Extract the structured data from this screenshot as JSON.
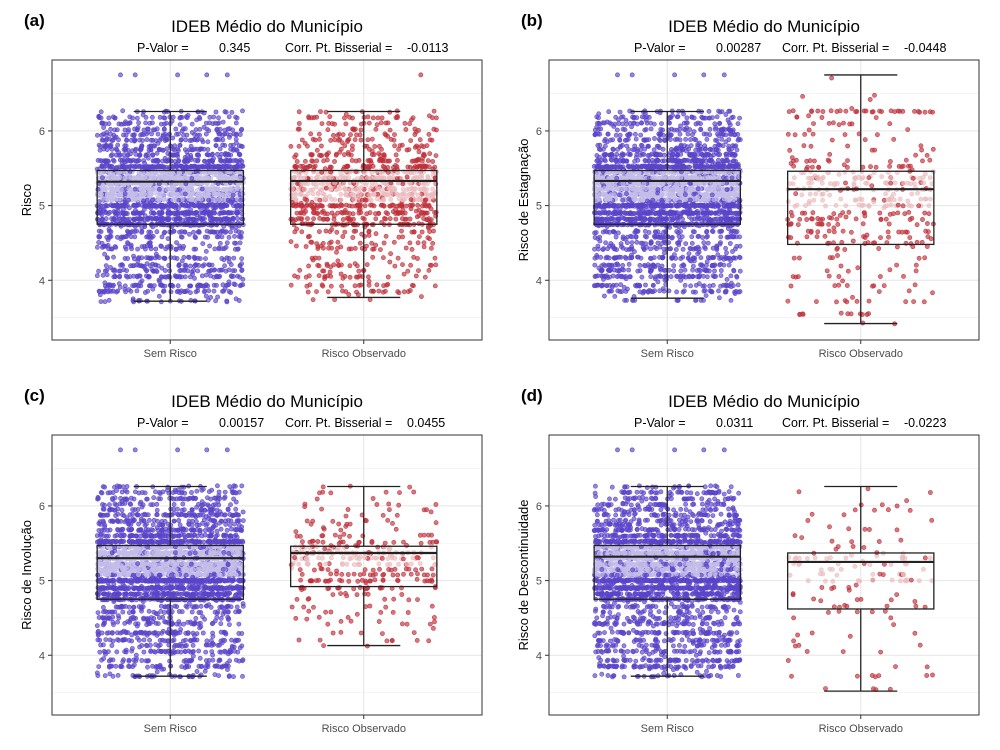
{
  "colors": {
    "group1_dot": "#5a45c9",
    "group1_dot_center": "#c4bde8",
    "group2_dot": "#c0303a",
    "group2_dot_center": "#ebbcbf",
    "grid_major": "#e5e5e5",
    "grid_minor": "#f2f2f2",
    "panel_border": "#333333"
  },
  "chart_data": [
    {
      "type": "boxplot",
      "tag": "(a)",
      "title": "IDEB Médio do Município",
      "pvalue_label": "P-Valor =",
      "pvalue": "0.345",
      "corr_label": "Corr. Pt. Bisserial =",
      "corr": "-0.0113",
      "ylabel": "Risco",
      "xlabel": "",
      "ylim": [
        3.2,
        6.95
      ],
      "yticks": [
        4,
        5,
        6
      ],
      "categories": [
        "Sem Risco",
        "Risco Observado"
      ],
      "series": [
        {
          "name": "Sem Risco",
          "n": 2600,
          "q1": 4.75,
          "median": 5.32,
          "q3": 5.47,
          "whisker_low": 3.72,
          "whisker_high": 6.26,
          "outliers": [
            6.75
          ]
        },
        {
          "name": "Risco Observado",
          "n": 1100,
          "q1": 4.75,
          "median": 5.33,
          "q3": 5.47,
          "whisker_low": 3.77,
          "whisker_high": 6.26,
          "outliers": [
            6.75
          ]
        }
      ]
    },
    {
      "type": "boxplot",
      "tag": "(b)",
      "title": "IDEB Médio do Município",
      "pvalue_label": "P-Valor =",
      "pvalue": "0.00287",
      "corr_label": "Corr. Pt. Bisserial =",
      "corr": "-0.0448",
      "ylabel": "Risco de Estagnação",
      "xlabel": "",
      "ylim": [
        3.2,
        6.95
      ],
      "yticks": [
        4,
        5,
        6
      ],
      "categories": [
        "Sem Risco",
        "Risco Observado"
      ],
      "series": [
        {
          "name": "Sem Risco",
          "n": 3000,
          "q1": 4.75,
          "median": 5.33,
          "q3": 5.47,
          "whisker_low": 3.76,
          "whisker_high": 6.26,
          "outliers": [
            6.75
          ]
        },
        {
          "name": "Risco Observado",
          "n": 420,
          "q1": 4.48,
          "median": 5.22,
          "q3": 5.46,
          "whisker_low": 3.42,
          "whisker_high": 6.75,
          "outliers": []
        }
      ]
    },
    {
      "type": "boxplot",
      "tag": "(c)",
      "title": "IDEB Médio do Município",
      "pvalue_label": "P-Valor =",
      "pvalue": "0.00157",
      "corr_label": "Corr. Pt. Bisserial =",
      "corr": "0.0455",
      "ylabel": "Risco de Involução",
      "xlabel": "",
      "ylim": [
        3.2,
        6.95
      ],
      "yticks": [
        4,
        5,
        6
      ],
      "categories": [
        "Sem Risco",
        "Risco Observado"
      ],
      "series": [
        {
          "name": "Sem Risco",
          "n": 3000,
          "q1": 4.75,
          "median": 5.3,
          "q3": 5.47,
          "whisker_low": 3.72,
          "whisker_high": 6.26,
          "outliers": [
            6.75
          ]
        },
        {
          "name": "Risco Observado",
          "n": 360,
          "q1": 4.92,
          "median": 5.37,
          "q3": 5.46,
          "whisker_low": 4.13,
          "whisker_high": 6.26,
          "outliers": []
        }
      ]
    },
    {
      "type": "boxplot",
      "tag": "(d)",
      "title": "IDEB Médio do Município",
      "pvalue_label": "P-Valor =",
      "pvalue": "0.0311",
      "corr_label": "Corr. Pt. Bisserial =",
      "corr": "-0.0223",
      "ylabel": "Risco de Descontinuidade",
      "xlabel": "",
      "ylim": [
        3.2,
        6.95
      ],
      "yticks": [
        4,
        5,
        6
      ],
      "categories": [
        "Sem Risco",
        "Risco Observado"
      ],
      "series": [
        {
          "name": "Sem Risco",
          "n": 3000,
          "q1": 4.75,
          "median": 5.32,
          "q3": 5.47,
          "whisker_low": 3.72,
          "whisker_high": 6.26,
          "outliers": [
            6.75
          ]
        },
        {
          "name": "Risco Observado",
          "n": 150,
          "q1": 4.62,
          "median": 5.25,
          "q3": 5.37,
          "whisker_low": 3.52,
          "whisker_high": 6.26,
          "outliers": []
        }
      ]
    }
  ]
}
